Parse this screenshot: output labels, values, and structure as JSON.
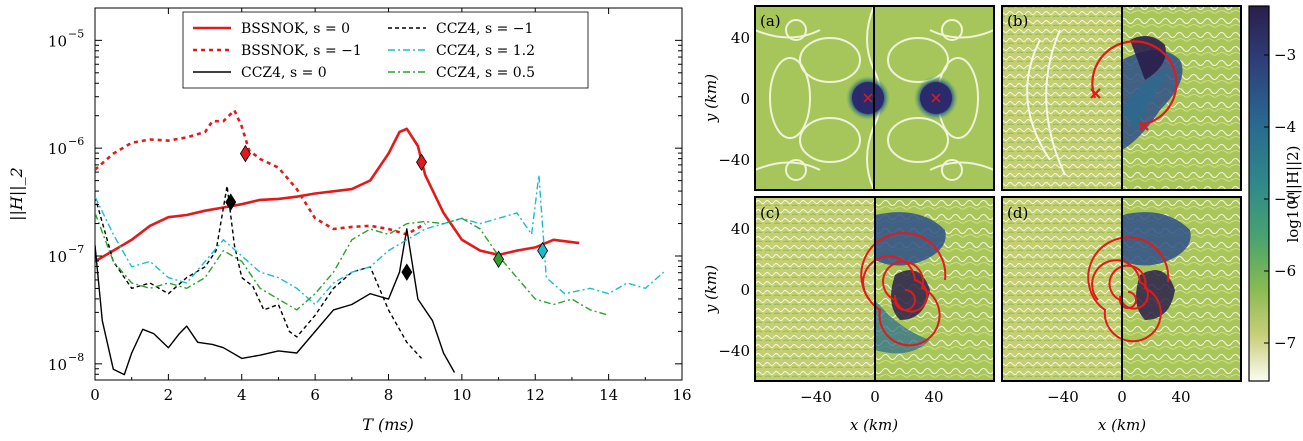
{
  "chart_data": [
    {
      "type": "line",
      "xlabel": "T (ms)",
      "ylabel": "||H||_2",
      "xlim": [
        0,
        16
      ],
      "ylim_log10": [
        -8.15,
        -4.7
      ],
      "log_y": true,
      "xticks": [
        "0",
        "2",
        "4",
        "6",
        "8",
        "10",
        "12",
        "14",
        "16"
      ],
      "yticks": [
        {
          "base": "10",
          "exp": "−8",
          "value": -8
        },
        {
          "base": "10",
          "exp": "−7",
          "value": -7
        },
        {
          "base": "10",
          "exp": "−6",
          "value": -6
        },
        {
          "base": "10",
          "exp": "−5",
          "value": -5
        }
      ],
      "legend_position": "top-center",
      "series": [
        {
          "name": "BSSNOK, s = 0",
          "color": "#e31a1c",
          "dash": "",
          "width": 2.6,
          "points": [
            [
              0,
              -7.05
            ],
            [
              0.5,
              -6.95
            ],
            [
              1,
              -6.85
            ],
            [
              1.5,
              -6.72
            ],
            [
              2,
              -6.64
            ],
            [
              2.5,
              -6.62
            ],
            [
              3,
              -6.58
            ],
            [
              3.5,
              -6.55
            ],
            [
              4,
              -6.52
            ],
            [
              4.5,
              -6.48
            ],
            [
              5,
              -6.47
            ],
            [
              5.5,
              -6.45
            ],
            [
              6,
              -6.42
            ],
            [
              6.5,
              -6.4
            ],
            [
              7,
              -6.38
            ],
            [
              7.5,
              -6.3
            ],
            [
              8,
              -6.05
            ],
            [
              8.3,
              -5.85
            ],
            [
              8.5,
              -5.82
            ],
            [
              8.8,
              -5.98
            ],
            [
              9,
              -6.25
            ],
            [
              9.5,
              -6.6
            ],
            [
              10,
              -6.85
            ],
            [
              10.5,
              -6.95
            ],
            [
              11,
              -6.99
            ],
            [
              11.5,
              -6.95
            ],
            [
              12,
              -6.92
            ],
            [
              12.5,
              -6.85
            ],
            [
              13.2,
              -6.88
            ]
          ]
        },
        {
          "name": "BSSNOK, s = −1",
          "color": "#e31a1c",
          "dash": "4,4",
          "width": 2.6,
          "points": [
            [
              0,
              -6.2
            ],
            [
              0.5,
              -6.05
            ],
            [
              1,
              -5.95
            ],
            [
              1.5,
              -5.92
            ],
            [
              2,
              -5.93
            ],
            [
              2.5,
              -5.9
            ],
            [
              3,
              -5.85
            ],
            [
              3.2,
              -5.75
            ],
            [
              3.5,
              -5.75
            ],
            [
              3.8,
              -5.65
            ],
            [
              4,
              -5.8
            ],
            [
              4.2,
              -6.02
            ],
            [
              4.5,
              -6.1
            ],
            [
              5,
              -6.18
            ],
            [
              5.5,
              -6.38
            ],
            [
              6,
              -6.65
            ],
            [
              6.5,
              -6.75
            ],
            [
              7,
              -6.73
            ],
            [
              7.5,
              -6.72
            ],
            [
              8,
              -6.75
            ],
            [
              8.5,
              -6.8
            ],
            [
              9,
              -6.7
            ]
          ]
        },
        {
          "name": "CCZ4, s = 0",
          "color": "#000000",
          "dash": "",
          "width": 1.4,
          "points": [
            [
              0,
              -6.9
            ],
            [
              0.2,
              -7.6
            ],
            [
              0.5,
              -8.05
            ],
            [
              0.8,
              -8.1
            ],
            [
              1,
              -7.9
            ],
            [
              1.3,
              -7.68
            ],
            [
              1.6,
              -7.72
            ],
            [
              2,
              -7.85
            ],
            [
              2.3,
              -7.72
            ],
            [
              2.5,
              -7.65
            ],
            [
              2.8,
              -7.8
            ],
            [
              3.2,
              -7.82
            ],
            [
              3.5,
              -7.85
            ],
            [
              4,
              -7.95
            ],
            [
              4.5,
              -7.92
            ],
            [
              5,
              -7.88
            ],
            [
              5.5,
              -7.9
            ],
            [
              6,
              -7.7
            ],
            [
              6.5,
              -7.5
            ],
            [
              7,
              -7.45
            ],
            [
              7.5,
              -7.35
            ],
            [
              8,
              -7.4
            ],
            [
              8.3,
              -7.15
            ],
            [
              8.5,
              -6.75
            ],
            [
              8.8,
              -7.4
            ],
            [
              9.2,
              -7.6
            ],
            [
              9.5,
              -7.9
            ],
            [
              9.8,
              -8.08
            ]
          ]
        },
        {
          "name": "CCZ4, s = −1",
          "color": "#000000",
          "dash": "4,3",
          "width": 1.4,
          "points": [
            [
              0,
              -6.45
            ],
            [
              0.5,
              -7.05
            ],
            [
              1,
              -7.3
            ],
            [
              1.5,
              -7.25
            ],
            [
              2,
              -7.35
            ],
            [
              2.5,
              -7.2
            ],
            [
              3,
              -7.1
            ],
            [
              3.3,
              -6.95
            ],
            [
              3.6,
              -6.35
            ],
            [
              3.8,
              -6.9
            ],
            [
              4,
              -7.2
            ],
            [
              4.3,
              -7.28
            ],
            [
              4.6,
              -7.5
            ],
            [
              5,
              -7.45
            ],
            [
              5.3,
              -7.7
            ],
            [
              5.5,
              -7.75
            ],
            [
              6,
              -7.55
            ],
            [
              6.5,
              -7.3
            ],
            [
              7,
              -7.15
            ],
            [
              7.5,
              -7.1
            ],
            [
              8,
              -7.5
            ],
            [
              8.5,
              -7.8
            ],
            [
              8.9,
              -7.95
            ]
          ]
        },
        {
          "name": "CCZ4, s = 1.2",
          "color": "#17becf",
          "dash": "7,3,2,3",
          "width": 1.4,
          "points": [
            [
              0,
              -6.45
            ],
            [
              0.5,
              -6.8
            ],
            [
              1,
              -7.1
            ],
            [
              1.5,
              -7.05
            ],
            [
              2,
              -7.2
            ],
            [
              2.5,
              -7.25
            ],
            [
              3,
              -7.05
            ],
            [
              3.5,
              -6.85
            ],
            [
              4,
              -7.0
            ],
            [
              4.5,
              -7.15
            ],
            [
              5,
              -7.2
            ],
            [
              5.5,
              -7.3
            ],
            [
              6,
              -7.45
            ],
            [
              6.5,
              -7.25
            ],
            [
              7,
              -7.15
            ],
            [
              7.5,
              -7.1
            ],
            [
              8,
              -6.95
            ],
            [
              8.5,
              -6.85
            ],
            [
              9,
              -6.75
            ],
            [
              9.5,
              -6.7
            ],
            [
              10,
              -6.65
            ],
            [
              10.5,
              -6.7
            ],
            [
              11,
              -6.65
            ],
            [
              11.5,
              -6.6
            ],
            [
              11.9,
              -6.8
            ],
            [
              12.1,
              -6.25
            ],
            [
              12.3,
              -7.2
            ],
            [
              12.8,
              -7.35
            ],
            [
              13.5,
              -7.3
            ],
            [
              14,
              -7.35
            ],
            [
              14.5,
              -7.25
            ],
            [
              15,
              -7.3
            ],
            [
              15.5,
              -7.15
            ]
          ]
        },
        {
          "name": "CCZ4, s = 0.5",
          "color": "#2ca02c",
          "dash": "7,3,2,3",
          "width": 1.4,
          "points": [
            [
              0,
              -6.6
            ],
            [
              0.5,
              -7.05
            ],
            [
              1,
              -7.25
            ],
            [
              1.5,
              -7.3
            ],
            [
              2,
              -7.25
            ],
            [
              2.5,
              -7.3
            ],
            [
              3,
              -7.2
            ],
            [
              3.5,
              -6.95
            ],
            [
              4,
              -7.05
            ],
            [
              4.5,
              -7.3
            ],
            [
              5,
              -7.4
            ],
            [
              5.5,
              -7.5
            ],
            [
              6,
              -7.35
            ],
            [
              6.5,
              -7.15
            ],
            [
              7,
              -6.85
            ],
            [
              7.5,
              -6.75
            ],
            [
              8,
              -6.8
            ],
            [
              8.5,
              -6.7
            ],
            [
              9,
              -6.68
            ],
            [
              9.5,
              -6.7
            ],
            [
              10,
              -6.65
            ],
            [
              10.5,
              -6.75
            ],
            [
              11,
              -7.0
            ],
            [
              11.5,
              -7.2
            ],
            [
              12,
              -7.4
            ],
            [
              12.5,
              -7.45
            ],
            [
              13,
              -7.4
            ],
            [
              13.5,
              -7.5
            ],
            [
              14,
              -7.55
            ]
          ]
        }
      ],
      "markers": [
        {
          "x": 4.1,
          "y": -6.05,
          "color": "#e31a1c"
        },
        {
          "x": 8.9,
          "y": -6.13,
          "color": "#e31a1c"
        },
        {
          "x": 3.7,
          "y": -6.5,
          "color": "#000000"
        },
        {
          "x": 8.5,
          "y": -7.15,
          "color": "#000000"
        },
        {
          "x": 11.0,
          "y": -7.03,
          "color": "#2ca02c"
        },
        {
          "x": 12.2,
          "y": -6.95,
          "color": "#17becf"
        }
      ]
    },
    {
      "type": "heatmap",
      "panels": [
        "(a)",
        "(b)",
        "(c)",
        "(d)"
      ],
      "xlabel": "x (km)",
      "ylabel": "y (km)",
      "xticks": [
        "−40",
        "0",
        "40"
      ],
      "yticks": [
        "40",
        "0",
        "−40"
      ],
      "colorbar_label": "log10(||H||2)",
      "colorbar_ticks": [
        "−3",
        "−4",
        "−5",
        "−6",
        "−7"
      ],
      "colormap": [
        "#2a1e4a",
        "#2e3f7a",
        "#2a6a8f",
        "#2f8a8a",
        "#4aa36f",
        "#86ba52",
        "#c9cf7a",
        "#fbfbf2"
      ]
    }
  ]
}
